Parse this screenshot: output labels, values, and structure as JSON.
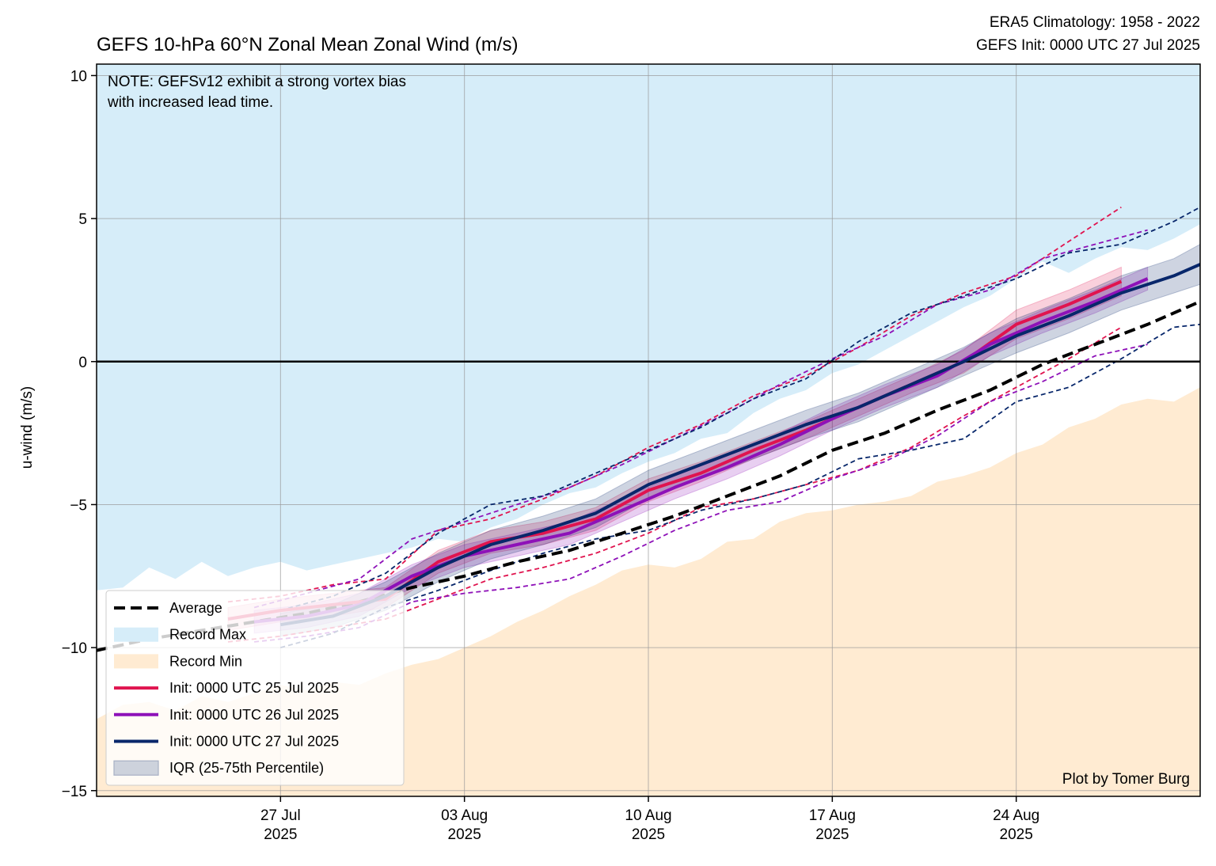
{
  "chart_data": {
    "type": "line",
    "title": "GEFS 10-hPa 60°N Zonal Mean Zonal Wind (m/s)",
    "info_lines": [
      "ERA5 Climatology: 1958 - 2022",
      "GEFS Init: 0000 UTC 27 Jul 2025"
    ],
    "ylabel": "u-wind (m/s)",
    "ylim": [
      -15.2,
      10.4
    ],
    "xlim": [
      "2025-07-20",
      "2025-08-31"
    ],
    "yticks": [
      10,
      5,
      0,
      -5,
      -10,
      -15
    ],
    "ytick_labels": [
      "10",
      "5",
      "0",
      "−5",
      "−10",
      "−15"
    ],
    "xticks": [
      {
        "date": "2025-07-27",
        "line1": "27 Jul",
        "line2": "2025"
      },
      {
        "date": "2025-08-03",
        "line1": "03 Aug",
        "line2": "2025"
      },
      {
        "date": "2025-08-10",
        "line1": "10 Aug",
        "line2": "2025"
      },
      {
        "date": "2025-08-17",
        "line1": "17 Aug",
        "line2": "2025"
      },
      {
        "date": "2025-08-24",
        "line1": "24 Aug",
        "line2": "2025"
      }
    ],
    "grid": true,
    "zero_line": true,
    "note_lines": [
      "NOTE: GEFSv12 exhibit a strong vortex bias",
      "with increased lead time."
    ],
    "credit": "Plot by Tomer Burg",
    "legend_position": "lower-left",
    "colors": {
      "record_max": "#d6edf9",
      "record_min": "#ffebd2",
      "average": "#000000",
      "init_25": "#e0144f",
      "init_26": "#8e11b8",
      "init_27": "#08276b",
      "iqr": "#cdd2dc"
    },
    "legend": [
      {
        "key": "average",
        "label": "Average",
        "style": "dashed"
      },
      {
        "key": "record_max",
        "label": "Record Max",
        "style": "patch"
      },
      {
        "key": "record_min",
        "label": "Record Min",
        "style": "patch"
      },
      {
        "key": "init_25",
        "label": "Init: 0000 UTC 25 Jul 2025",
        "style": "line"
      },
      {
        "key": "init_26",
        "label": "Init: 0000 UTC 26 Jul 2025",
        "style": "line"
      },
      {
        "key": "init_27",
        "label": "Init: 0000 UTC 27 Jul 2025",
        "style": "line"
      },
      {
        "key": "iqr",
        "label": "IQR (25-75th Percentile)",
        "style": "patch-iqr"
      }
    ],
    "record_max": {
      "x": [
        "2025-07-20",
        "2025-07-21",
        "2025-07-22",
        "2025-07-23",
        "2025-07-24",
        "2025-07-25",
        "2025-07-26",
        "2025-07-27",
        "2025-07-28",
        "2025-07-29",
        "2025-07-30",
        "2025-07-31",
        "2025-08-01",
        "2025-08-02",
        "2025-08-03",
        "2025-08-04",
        "2025-08-05",
        "2025-08-06",
        "2025-08-07",
        "2025-08-08",
        "2025-08-09",
        "2025-08-10",
        "2025-08-11",
        "2025-08-12",
        "2025-08-13",
        "2025-08-14",
        "2025-08-15",
        "2025-08-16",
        "2025-08-17",
        "2025-08-18",
        "2025-08-19",
        "2025-08-20",
        "2025-08-21",
        "2025-08-22",
        "2025-08-23",
        "2025-08-24",
        "2025-08-25",
        "2025-08-26",
        "2025-08-27",
        "2025-08-28",
        "2025-08-29",
        "2025-08-30",
        "2025-08-31"
      ],
      "y": [
        -8.0,
        -7.9,
        -7.2,
        -7.6,
        -7.0,
        -7.5,
        -7.2,
        -7.0,
        -7.3,
        -7.1,
        -6.9,
        -6.7,
        -6.5,
        -6.2,
        -6.3,
        -5.8,
        -5.5,
        -5.0,
        -4.6,
        -4.4,
        -3.9,
        -3.5,
        -3.2,
        -2.7,
        -2.5,
        -1.8,
        -1.3,
        -1.0,
        -0.4,
        -0.1,
        0.4,
        0.9,
        1.4,
        1.9,
        2.3,
        2.9,
        3.5,
        3.1,
        3.6,
        4.0,
        3.9,
        4.3,
        4.8
      ]
    },
    "record_min": {
      "x": [
        "2025-07-20",
        "2025-07-21",
        "2025-07-22",
        "2025-07-23",
        "2025-07-24",
        "2025-07-25",
        "2025-07-26",
        "2025-07-27",
        "2025-07-28",
        "2025-07-29",
        "2025-07-30",
        "2025-07-31",
        "2025-08-01",
        "2025-08-02",
        "2025-08-03",
        "2025-08-04",
        "2025-08-05",
        "2025-08-06",
        "2025-08-07",
        "2025-08-08",
        "2025-08-09",
        "2025-08-10",
        "2025-08-11",
        "2025-08-12",
        "2025-08-13",
        "2025-08-14",
        "2025-08-15",
        "2025-08-16",
        "2025-08-17",
        "2025-08-18",
        "2025-08-19",
        "2025-08-20",
        "2025-08-21",
        "2025-08-22",
        "2025-08-23",
        "2025-08-24",
        "2025-08-25",
        "2025-08-26",
        "2025-08-27",
        "2025-08-28",
        "2025-08-29",
        "2025-08-30",
        "2025-08-31"
      ],
      "y": [
        -12.5,
        -12.0,
        -11.9,
        -12.2,
        -11.7,
        -11.9,
        -11.6,
        -11.3,
        -11.5,
        -11.2,
        -11.3,
        -10.9,
        -10.6,
        -10.4,
        -10.0,
        -9.6,
        -9.1,
        -8.7,
        -8.2,
        -7.8,
        -7.3,
        -7.1,
        -7.2,
        -6.9,
        -6.3,
        -6.2,
        -5.6,
        -5.3,
        -5.2,
        -5.0,
        -4.9,
        -4.7,
        -4.2,
        -4.0,
        -3.7,
        -3.2,
        -2.9,
        -2.3,
        -2.0,
        -1.5,
        -1.3,
        -1.4,
        -0.9
      ]
    },
    "average": {
      "x": [
        "2025-07-20",
        "2025-07-22",
        "2025-07-24",
        "2025-07-26",
        "2025-07-28",
        "2025-07-30",
        "2025-08-01",
        "2025-08-03",
        "2025-08-05",
        "2025-08-07",
        "2025-08-09",
        "2025-08-11",
        "2025-08-13",
        "2025-08-15",
        "2025-08-17",
        "2025-08-19",
        "2025-08-21",
        "2025-08-23",
        "2025-08-25",
        "2025-08-27",
        "2025-08-29",
        "2025-08-31"
      ],
      "y": [
        -10.1,
        -9.7,
        -9.4,
        -9.1,
        -8.8,
        -8.4,
        -7.9,
        -7.5,
        -7.0,
        -6.6,
        -6.0,
        -5.4,
        -4.7,
        -4.0,
        -3.1,
        -2.5,
        -1.7,
        -1.0,
        -0.1,
        0.6,
        1.3,
        2.1
      ]
    },
    "series": [
      {
        "name": "Init: 0000 UTC 25 Jul 2025",
        "key": "init_25",
        "x": [
          "2025-07-25",
          "2025-07-27",
          "2025-07-29",
          "2025-07-31",
          "2025-08-02",
          "2025-08-04",
          "2025-08-06",
          "2025-08-08",
          "2025-08-10",
          "2025-08-12",
          "2025-08-14",
          "2025-08-16",
          "2025-08-18",
          "2025-08-20",
          "2025-08-22",
          "2025-08-24",
          "2025-08-26",
          "2025-08-28"
        ],
        "y": [
          -9.0,
          -8.7,
          -8.5,
          -8.3,
          -7.0,
          -6.3,
          -6.0,
          -5.5,
          -4.5,
          -3.9,
          -3.1,
          -2.4,
          -1.6,
          -0.8,
          0.0,
          1.3,
          2.0,
          2.8
        ],
        "iqr_low": [
          -9.4,
          -9.1,
          -8.9,
          -8.6,
          -7.4,
          -6.7,
          -6.4,
          -5.9,
          -4.9,
          -4.2,
          -3.4,
          -2.7,
          -1.9,
          -1.1,
          -0.4,
          0.8,
          1.5,
          2.3
        ],
        "iqr_high": [
          -8.6,
          -8.3,
          -8.1,
          -7.9,
          -6.6,
          -5.9,
          -5.6,
          -5.1,
          -4.1,
          -3.5,
          -2.8,
          -2.1,
          -1.3,
          -0.5,
          0.4,
          1.8,
          2.5,
          3.3
        ],
        "upper": [
          -8.4,
          -8.2,
          -7.8,
          -7.6,
          -5.9,
          -5.5,
          -4.8,
          -4.0,
          -3.0,
          -2.2,
          -1.2,
          -0.5,
          0.5,
          1.6,
          2.4,
          3.0,
          4.2,
          5.4
        ],
        "lower": [
          -9.8,
          -9.6,
          -9.3,
          -9.0,
          -8.3,
          -7.6,
          -7.2,
          -6.7,
          -6.0,
          -5.1,
          -4.8,
          -4.3,
          -3.8,
          -3.0,
          -1.9,
          -0.9,
          0.1,
          1.2
        ]
      },
      {
        "name": "Init: 0000 UTC 26 Jul 2025",
        "key": "init_26",
        "x": [
          "2025-07-26",
          "2025-07-28",
          "2025-07-30",
          "2025-08-01",
          "2025-08-03",
          "2025-08-05",
          "2025-08-07",
          "2025-08-09",
          "2025-08-11",
          "2025-08-13",
          "2025-08-15",
          "2025-08-17",
          "2025-08-19",
          "2025-08-21",
          "2025-08-23",
          "2025-08-25",
          "2025-08-27",
          "2025-08-29"
        ],
        "y": [
          -9.1,
          -8.9,
          -8.5,
          -7.5,
          -6.8,
          -6.4,
          -6.0,
          -5.2,
          -4.4,
          -3.7,
          -2.9,
          -2.0,
          -1.2,
          -0.5,
          0.6,
          1.4,
          2.1,
          2.9
        ],
        "iqr_low": [
          -9.5,
          -9.3,
          -8.9,
          -7.9,
          -7.2,
          -6.8,
          -6.4,
          -5.6,
          -4.8,
          -4.1,
          -3.3,
          -2.4,
          -1.6,
          -0.9,
          0.2,
          1.0,
          1.7,
          2.5
        ],
        "iqr_high": [
          -8.7,
          -8.5,
          -8.1,
          -7.1,
          -6.4,
          -6.0,
          -5.6,
          -4.8,
          -4.0,
          -3.3,
          -2.5,
          -1.6,
          -0.8,
          -0.1,
          1.0,
          1.8,
          2.5,
          3.3
        ],
        "upper": [
          -8.6,
          -8.1,
          -7.6,
          -6.2,
          -5.6,
          -5.0,
          -4.4,
          -3.6,
          -2.7,
          -1.8,
          -0.8,
          0.1,
          0.9,
          2.0,
          2.5,
          3.6,
          4.1,
          4.6
        ],
        "lower": [
          -9.8,
          -9.6,
          -9.3,
          -8.4,
          -8.1,
          -7.9,
          -7.6,
          -6.8,
          -5.9,
          -5.2,
          -4.9,
          -4.1,
          -3.5,
          -2.6,
          -1.4,
          -0.7,
          0.2,
          0.6
        ]
      },
      {
        "name": "Init: 0000 UTC 27 Jul 2025",
        "key": "init_27",
        "x": [
          "2025-07-27",
          "2025-07-29",
          "2025-07-31",
          "2025-08-02",
          "2025-08-04",
          "2025-08-06",
          "2025-08-08",
          "2025-08-10",
          "2025-08-12",
          "2025-08-14",
          "2025-08-16",
          "2025-08-18",
          "2025-08-20",
          "2025-08-22",
          "2025-08-24",
          "2025-08-26",
          "2025-08-28",
          "2025-08-30",
          "2025-08-31"
        ],
        "y": [
          -9.2,
          -8.9,
          -8.2,
          -7.2,
          -6.4,
          -5.9,
          -5.3,
          -4.3,
          -3.6,
          -2.9,
          -2.2,
          -1.6,
          -0.8,
          0.0,
          0.9,
          1.6,
          2.4,
          3.0,
          3.4
        ],
        "iqr_low": [
          -9.6,
          -9.3,
          -8.7,
          -7.7,
          -6.9,
          -6.4,
          -5.8,
          -4.8,
          -4.1,
          -3.4,
          -2.7,
          -2.1,
          -1.3,
          -0.5,
          0.3,
          1.0,
          1.8,
          2.4,
          2.7
        ],
        "iqr_high": [
          -8.8,
          -8.5,
          -7.7,
          -6.7,
          -5.9,
          -5.4,
          -4.8,
          -3.8,
          -3.1,
          -2.4,
          -1.7,
          -1.1,
          -0.3,
          0.5,
          1.5,
          2.2,
          3.0,
          3.6,
          4.1
        ],
        "upper": [
          -8.7,
          -8.2,
          -7.4,
          -6.0,
          -5.0,
          -4.7,
          -3.9,
          -3.1,
          -2.3,
          -1.3,
          -0.6,
          0.7,
          1.7,
          2.3,
          2.9,
          3.8,
          4.1,
          4.9,
          5.4
        ],
        "lower": [
          -10.0,
          -9.5,
          -8.6,
          -8.0,
          -7.3,
          -6.7,
          -6.2,
          -5.9,
          -5.2,
          -4.8,
          -4.3,
          -3.4,
          -3.1,
          -2.7,
          -1.4,
          -0.9,
          0.1,
          1.2,
          1.3
        ]
      }
    ]
  }
}
